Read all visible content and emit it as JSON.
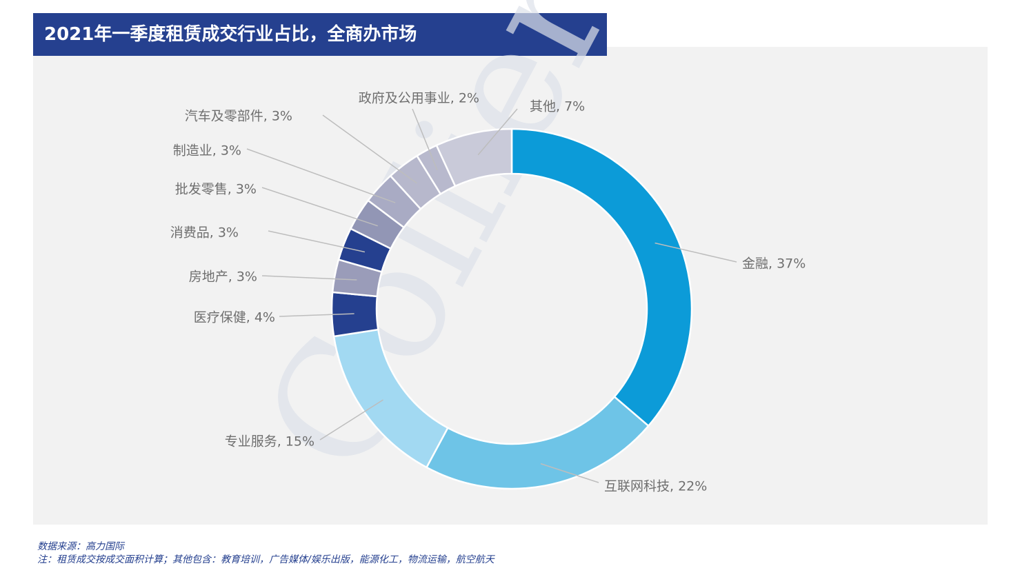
{
  "title": "2021年一季度租赁成交行业占比，全商办市场",
  "watermark": "Colliers",
  "footer": {
    "source": "数据来源：高力国际",
    "note": " 注：租赁成交按成交面积计算；其他包含：教育培训，广告媒体/娱乐出版，能源化工，物流运输，航空航天"
  },
  "chart_data": {
    "type": "pie",
    "style": "donut",
    "slices": [
      {
        "name": "金融",
        "value": 37,
        "label": "金融, 37%",
        "color": "#0c9bd8"
      },
      {
        "name": "互联网科技",
        "value": 22,
        "label": "互联网科技, 22%",
        "color": "#6ec4e7"
      },
      {
        "name": "专业服务",
        "value": 15,
        "label": "专业服务, 15%",
        "color": "#a2d9f2"
      },
      {
        "name": "医疗保健",
        "value": 4,
        "label": "医疗保健, 4%",
        "color": "#25408f"
      },
      {
        "name": "房地产",
        "value": 3,
        "label": "房地产, 3%",
        "color": "#9a9cb9"
      },
      {
        "name": "消费品",
        "value": 3,
        "label": "消费品, 3%",
        "color": "#25408f"
      },
      {
        "name": "批发零售",
        "value": 3,
        "label": "批发零售, 3%",
        "color": "#9296b5"
      },
      {
        "name": "制造业",
        "value": 3,
        "label": "制造业, 3%",
        "color": "#a9abc4"
      },
      {
        "name": "汽车及零部件",
        "value": 3,
        "label": "汽车及零部件, 3%",
        "color": "#b7b8cc"
      },
      {
        "name": "政府及公用事业",
        "value": 2,
        "label": "政府及公用事业, 2%",
        "color": "#b8b9cd"
      },
      {
        "name": "其他",
        "value": 7,
        "label": "其他, 7%",
        "color": "#c9cad9"
      }
    ]
  }
}
